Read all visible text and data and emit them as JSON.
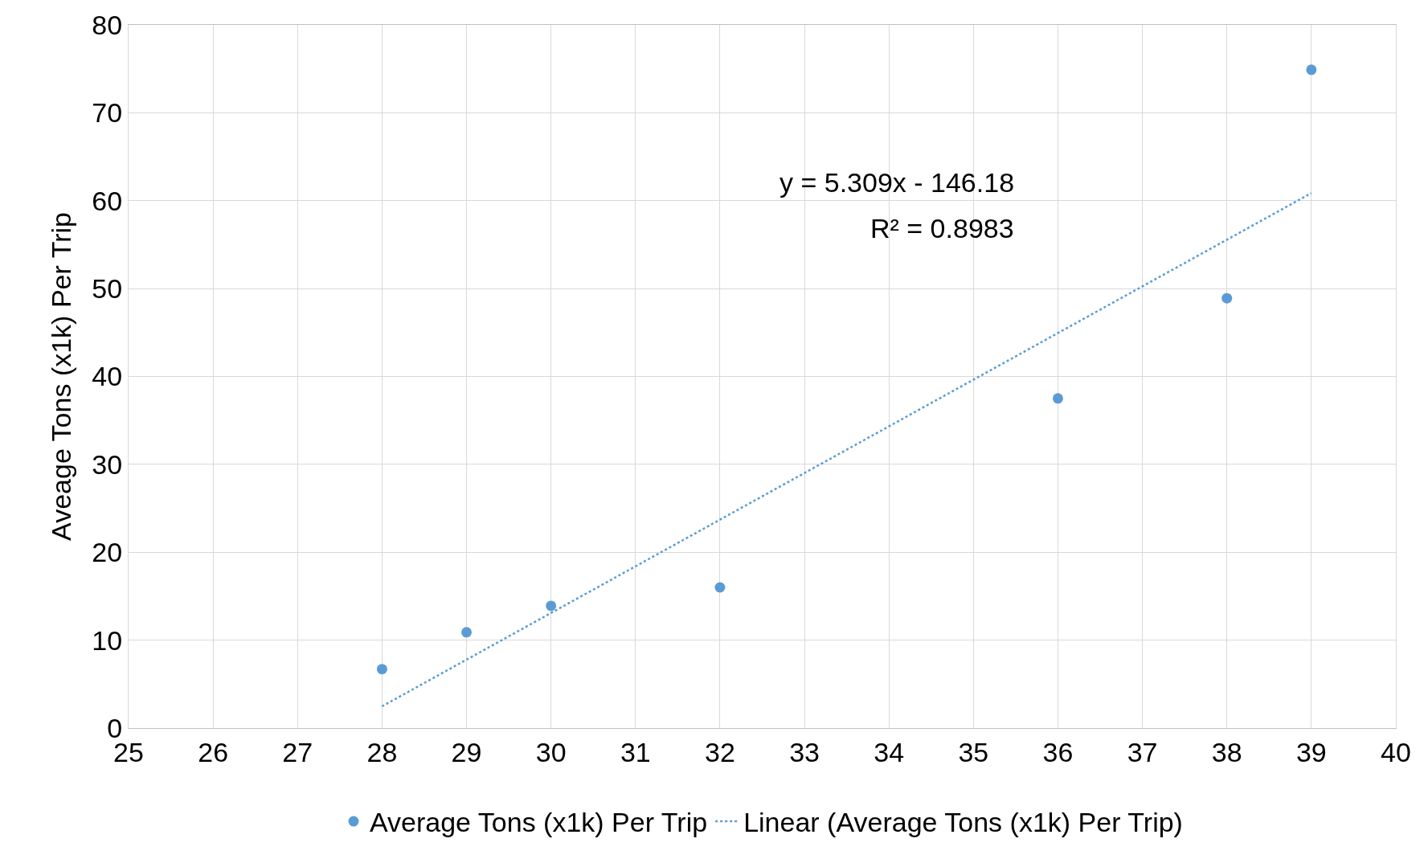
{
  "chart_data": {
    "type": "scatter",
    "ylabel": "Aveage Tons (x1k) Per Trip",
    "x": [
      28,
      29,
      30,
      32,
      36,
      38,
      39
    ],
    "series": [
      {
        "name": "Average Tons (x1k) Per Trip",
        "color": "#5b9bd5",
        "values": [
          6.7,
          10.9,
          13.9,
          16,
          37.5,
          48.9,
          74.9
        ],
        "marker": "circle"
      },
      {
        "name": "Linear (Average Tons (x1k) Per Trip)",
        "type": "line",
        "color": "#5b9bd5",
        "x": [
          28,
          39
        ],
        "values": [
          2.47,
          60.87
        ],
        "line_style": "dotted",
        "marker": "none"
      }
    ],
    "annotations": [
      "y = 5.309x - 146.18",
      "R² = 0.8983"
    ],
    "xlim": [
      25,
      40
    ],
    "xticks": [
      25,
      26,
      27,
      28,
      29,
      30,
      31,
      32,
      33,
      34,
      35,
      36,
      37,
      38,
      39,
      40
    ],
    "ylim": [
      0,
      80
    ],
    "yticks": [
      0,
      10,
      20,
      30,
      40,
      50,
      60,
      70,
      80
    ],
    "grid": true,
    "legend": "bottom"
  }
}
